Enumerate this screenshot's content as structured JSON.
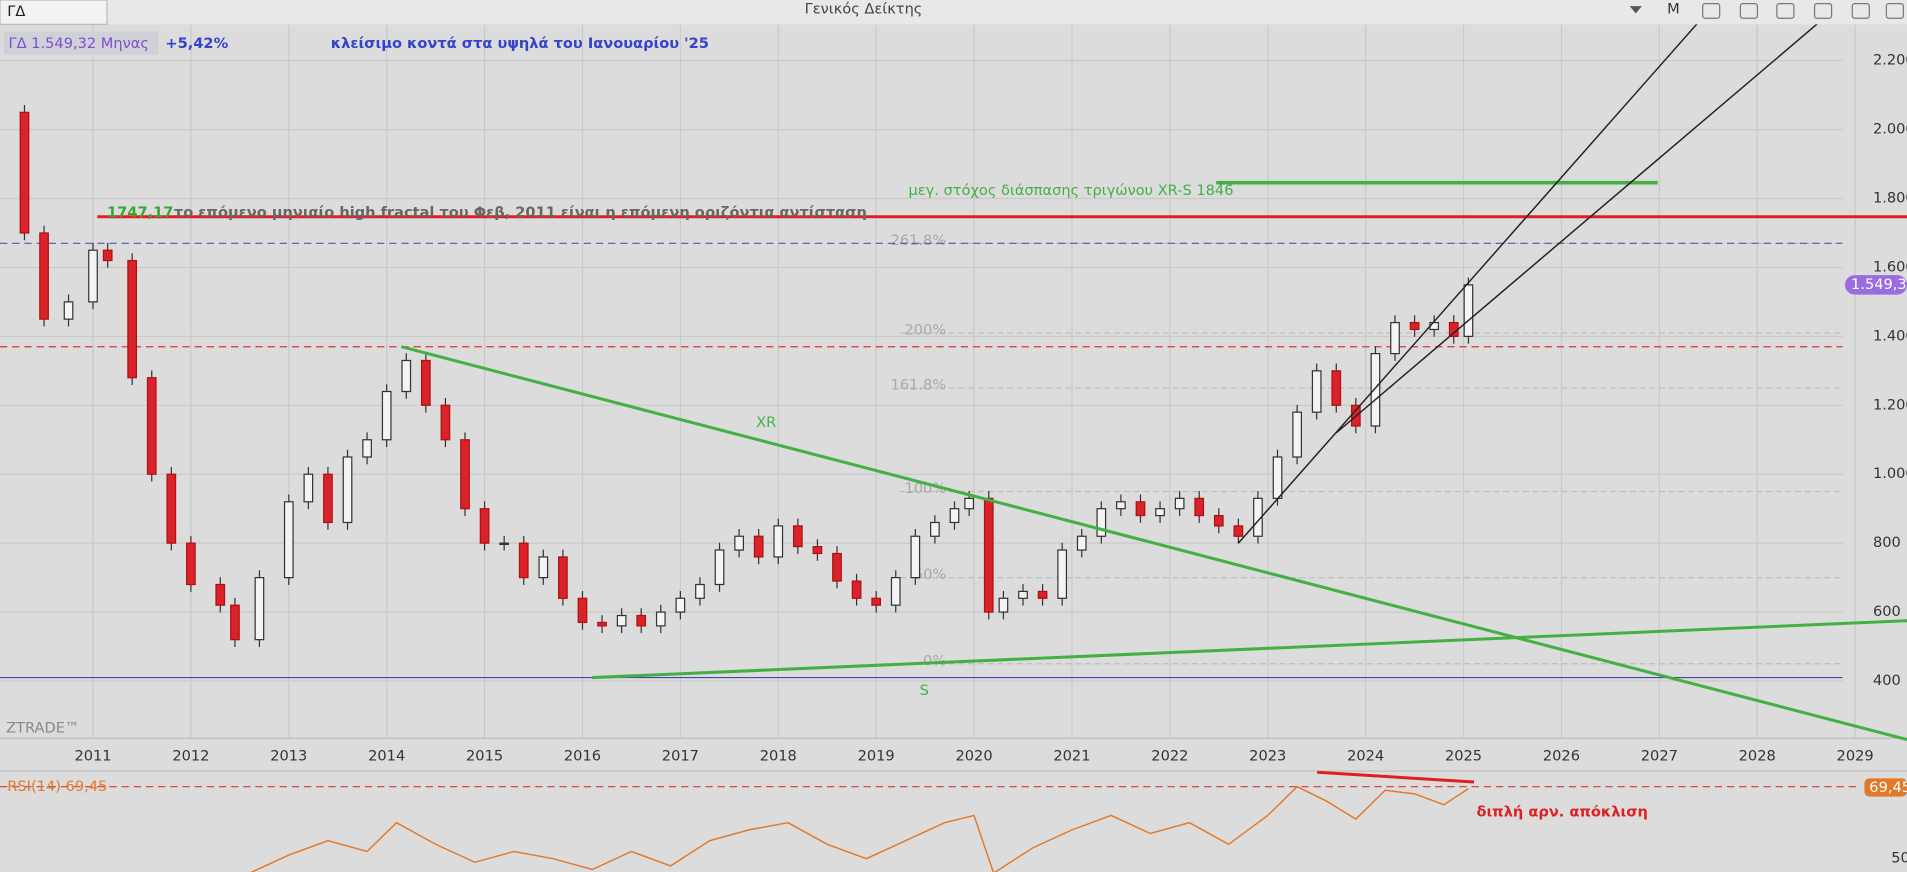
{
  "header": {
    "symbol": "ΓΔ",
    "title": "Γενικός Δείκτης",
    "period": "M"
  },
  "info": {
    "quote": "ΓΔ  1.549,32 Μηνας",
    "change": "+5,42%",
    "note": "κλείσιμο κοντά στα υψηλά του Ιανουαρίου '25"
  },
  "chart_data": {
    "type": "candlestick",
    "x": [
      2010.0,
      2010.3,
      2010.5,
      2010.75,
      2011.0,
      2011.15,
      2011.4,
      2011.6,
      2011.8,
      2012.0,
      2012.3,
      2012.45,
      2012.7,
      2013.0,
      2013.2,
      2013.4,
      2013.6,
      2013.8,
      2014.0,
      2014.2,
      2014.4,
      2014.6,
      2014.8,
      2015.0,
      2015.2,
      2015.4,
      2015.6,
      2015.8,
      2016.0,
      2016.2,
      2016.4,
      2016.6,
      2016.8,
      2017.0,
      2017.2,
      2017.4,
      2017.6,
      2017.8,
      2018.0,
      2018.2,
      2018.4,
      2018.6,
      2018.8,
      2019.0,
      2019.2,
      2019.4,
      2019.6,
      2019.8,
      2019.95,
      2020.15,
      2020.3,
      2020.5,
      2020.7,
      2020.9,
      2021.1,
      2021.3,
      2021.5,
      2021.7,
      2021.9,
      2022.1,
      2022.3,
      2022.5,
      2022.7,
      2022.9,
      2023.1,
      2023.3,
      2023.5,
      2023.7,
      2023.9,
      2024.1,
      2024.3,
      2024.5,
      2024.7,
      2024.9,
      2025.05
    ],
    "values": [
      2050,
      1700,
      1450,
      1500,
      1650,
      1620,
      1280,
      1000,
      800,
      680,
      620,
      520,
      700,
      920,
      1000,
      860,
      1050,
      1100,
      1240,
      1330,
      1200,
      1100,
      900,
      800,
      800,
      700,
      760,
      640,
      570,
      560,
      590,
      560,
      600,
      640,
      680,
      780,
      820,
      760,
      850,
      790,
      770,
      690,
      640,
      620,
      700,
      820,
      860,
      900,
      930,
      600,
      640,
      660,
      640,
      780,
      820,
      900,
      920,
      880,
      900,
      930,
      880,
      850,
      820,
      930,
      1050,
      1180,
      1300,
      1200,
      1140,
      1350,
      1440,
      1420,
      1440,
      1400,
      1549.32
    ],
    "xlim": [
      2010.05,
      2029.53
    ],
    "xticks": [
      2011,
      2012,
      2013,
      2014,
      2015,
      2016,
      2017,
      2018,
      2019,
      2020,
      2021,
      2022,
      2023,
      2024,
      2025,
      2026,
      2027,
      2028,
      2029
    ],
    "ylim": [
      234,
      2376
    ],
    "yticks": [
      {
        "value": 400,
        "label": "400"
      },
      {
        "value": 600,
        "label": "600"
      },
      {
        "value": 800,
        "label": "800"
      },
      {
        "value": 1000,
        "label": "1.000"
      },
      {
        "value": 1200,
        "label": "1.200"
      },
      {
        "value": 1400,
        "label": "1.400"
      },
      {
        "value": 1600,
        "label": "1.600"
      },
      {
        "value": 1800,
        "label": "1.800"
      },
      {
        "value": 2000,
        "label": "2.000"
      },
      {
        "value": 2200,
        "label": "2.200"
      }
    ],
    "last": {
      "value": 1549.32,
      "label": "1.549,32"
    },
    "resistance": {
      "value": 1747.17,
      "label": "1747,17",
      "note": "το επόμενο μηνιαίο high fractal του Φεβ, 2011 είναι η επόμενη οριζόντια αντίσταση"
    },
    "target": {
      "value": 1846,
      "label": "μεγ. στόχος διάσπασης τριγώνου XR-S 1846"
    },
    "levels": [
      {
        "value": 1670,
        "color": "#5555aa",
        "dash": true
      },
      {
        "value": 1370,
        "color": "#dd3333",
        "dash": true
      },
      {
        "value": 410,
        "color": "#4444aa",
        "dash": false
      }
    ],
    "fib": [
      {
        "value": 1670,
        "label": "261.8%"
      },
      {
        "value": 1410,
        "label": "200%"
      },
      {
        "value": 1250,
        "label": "161.8%"
      },
      {
        "value": 950,
        "label": "100%"
      },
      {
        "value": 700,
        "label": "50%"
      },
      {
        "value": 450,
        "label": "0%"
      }
    ],
    "trendlines": [
      {
        "name": "XR",
        "from": [
          2014.15,
          1370
        ],
        "to": [
          2029.53,
          230
        ],
        "color": "#44b044"
      },
      {
        "name": "S",
        "from": [
          2016.1,
          410
        ],
        "to": [
          2029.53,
          575
        ],
        "color": "#44b044"
      },
      {
        "from": [
          2022.7,
          800
        ],
        "to": [
          2027.6,
          2376
        ],
        "color": "#222"
      },
      {
        "from": [
          2023.7,
          1120
        ],
        "to": [
          2028.9,
          2376
        ],
        "color": "#222"
      }
    ],
    "watermark": "ZTRADE™"
  },
  "rsi": {
    "type": "line",
    "label": "RSI(14)  69,45",
    "badge": "69,45",
    "note": "διπλή αρν. απόκλιση",
    "x": [
      2012.6,
      2013.0,
      2013.4,
      2013.8,
      2014.1,
      2014.5,
      2014.9,
      2015.3,
      2015.7,
      2016.1,
      2016.5,
      2016.9,
      2017.3,
      2017.7,
      2018.1,
      2018.5,
      2018.9,
      2019.3,
      2019.7,
      2020.0,
      2020.2,
      2020.6,
      2021.0,
      2021.4,
      2021.8,
      2022.2,
      2022.6,
      2023.0,
      2023.3,
      2023.6,
      2023.9,
      2024.2,
      2024.5,
      2024.8,
      2025.05
    ],
    "values": [
      46,
      51,
      55,
      52,
      60,
      54,
      49,
      52,
      50,
      47,
      52,
      48,
      55,
      58,
      60,
      54,
      50,
      55,
      60,
      62,
      46,
      53,
      58,
      62,
      57,
      60,
      54,
      62,
      70,
      66,
      61,
      69,
      68,
      65,
      69.45
    ],
    "ylim": [
      46.3,
      74
    ],
    "yticks": [
      50
    ],
    "level": 70
  }
}
